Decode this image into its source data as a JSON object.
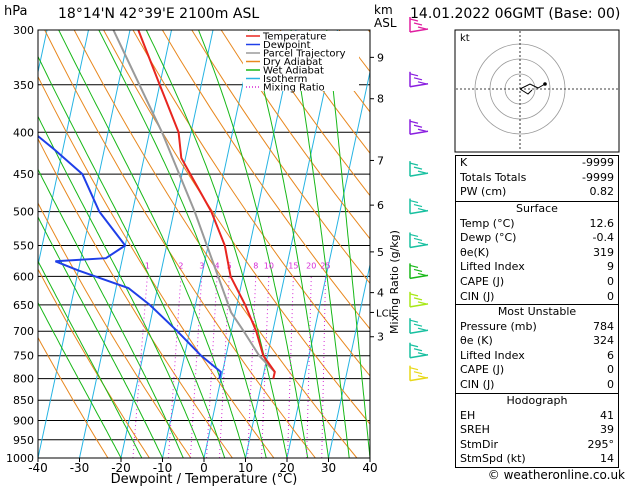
{
  "header": {
    "pressure_unit": "hPa",
    "location": "18°14'N  42°39'E  2100m  ASL",
    "km_label": "km",
    "asl_label": "ASL",
    "datetime": "14.01.2022  06GMT  (Base: 00)"
  },
  "chart_data": {
    "type": "skew-t",
    "pressure_levels": [
      300,
      350,
      400,
      450,
      500,
      550,
      600,
      650,
      700,
      750,
      800,
      850,
      900,
      950,
      1000
    ],
    "pressure_labels": [
      "300",
      "350",
      "400",
      "450",
      "500",
      "550",
      "600",
      "650",
      "700",
      "750",
      "800",
      "850",
      "900",
      "950",
      "1000"
    ],
    "x_ticks": [
      -40,
      -30,
      -20,
      -10,
      0,
      10,
      20,
      30,
      40
    ],
    "x_tick_labels": [
      "-40",
      "-30",
      "-20",
      "-10",
      "0",
      "10",
      "20",
      "30",
      "40"
    ],
    "xlabel": "Dewpoint / Temperature (°C)",
    "km_ticks": [
      {
        "p": 324,
        "label": "9"
      },
      {
        "p": 364,
        "label": "8"
      },
      {
        "p": 433,
        "label": "7"
      },
      {
        "p": 491,
        "label": "6"
      },
      {
        "p": 560,
        "label": "5"
      },
      {
        "p": 628,
        "label": "4"
      },
      {
        "p": 711,
        "label": "3"
      }
    ],
    "lcl": {
      "p": 664,
      "label": "LCL"
    },
    "mixing_ratio_label": "Mixing Ratio (g/kg)",
    "mixing_ratios": [
      1,
      2,
      3,
      4,
      5,
      8,
      10,
      15,
      20,
      25
    ],
    "mixing_ratio_labels": [
      "1",
      "2",
      "3",
      "4",
      "5",
      "8",
      "10",
      "15",
      "20",
      "25"
    ],
    "legend": [
      "Temperature",
      "Dewpoint",
      "Parcel Trajectory",
      "Dry Adiabat",
      "Wet Adiabat",
      "Isotherm",
      "Mixing Ratio"
    ],
    "temperature": [
      {
        "p": 300,
        "t": -38
      },
      {
        "p": 350,
        "t": -30
      },
      {
        "p": 400,
        "t": -23
      },
      {
        "p": 430,
        "t": -21
      },
      {
        "p": 450,
        "t": -18
      },
      {
        "p": 500,
        "t": -11
      },
      {
        "p": 550,
        "t": -6
      },
      {
        "p": 600,
        "t": -3
      },
      {
        "p": 650,
        "t": 2
      },
      {
        "p": 700,
        "t": 6
      },
      {
        "p": 750,
        "t": 9
      },
      {
        "p": 785,
        "t": 12.6
      },
      {
        "p": 800,
        "t": 12.6
      }
    ],
    "dewpoint": [
      {
        "p": 300,
        "t": -67
      },
      {
        "p": 310,
        "t": -74
      },
      {
        "p": 350,
        "t": -64
      },
      {
        "p": 400,
        "t": -58
      },
      {
        "p": 420,
        "t": -52
      },
      {
        "p": 450,
        "t": -44
      },
      {
        "p": 500,
        "t": -38
      },
      {
        "p": 550,
        "t": -30
      },
      {
        "p": 570,
        "t": -34
      },
      {
        "p": 575,
        "t": -46
      },
      {
        "p": 590,
        "t": -40
      },
      {
        "p": 620,
        "t": -27
      },
      {
        "p": 650,
        "t": -21
      },
      {
        "p": 700,
        "t": -13
      },
      {
        "p": 750,
        "t": -6
      },
      {
        "p": 785,
        "t": -0.4
      },
      {
        "p": 800,
        "t": -0.4
      }
    ],
    "parcel": [
      {
        "p": 300,
        "t": -44
      },
      {
        "p": 400,
        "t": -27
      },
      {
        "p": 500,
        "t": -15
      },
      {
        "p": 600,
        "t": -6
      },
      {
        "p": 664,
        "t": -1
      },
      {
        "p": 700,
        "t": 3
      },
      {
        "p": 750,
        "t": 8
      },
      {
        "p": 785,
        "t": 12.6
      }
    ],
    "colors": {
      "temperature": "#e8251f",
      "dewpoint": "#1f3fe8",
      "parcel": "#9a9a9a",
      "dry_adiabat": "#e8881f",
      "wet_adiabat": "#18b818",
      "isotherm": "#27b4e3",
      "mixing_ratio": "#d62ad6"
    }
  },
  "hodograph": {
    "label": "kt"
  },
  "wind_barbs": [
    {
      "p": 300,
      "color": "#e01fa0"
    },
    {
      "p": 350,
      "color": "#8a1fe0"
    },
    {
      "p": 400,
      "color": "#8a1fe0"
    },
    {
      "p": 450,
      "color": "#18c0a0"
    },
    {
      "p": 500,
      "color": "#18c0a0"
    },
    {
      "p": 550,
      "color": "#18c0a0"
    },
    {
      "p": 600,
      "color": "#18b818"
    },
    {
      "p": 650,
      "color": "#a8e818"
    },
    {
      "p": 700,
      "color": "#18c0a0"
    },
    {
      "p": 750,
      "color": "#18c0a0"
    },
    {
      "p": 800,
      "color": "#e8d818"
    }
  ],
  "indices": {
    "rows": [
      {
        "label": "K",
        "value": "-9999"
      },
      {
        "label": "Totals Totals",
        "value": "-9999"
      },
      {
        "label": "PW (cm)",
        "value": "0.82"
      }
    ]
  },
  "surface": {
    "title": "Surface",
    "rows": [
      {
        "label": "Temp (°C)",
        "value": "12.6"
      },
      {
        "label": "Dewp (°C)",
        "value": "-0.4"
      },
      {
        "label": "θe(K)",
        "value": "319"
      },
      {
        "label": "Lifted Index",
        "value": "9"
      },
      {
        "label": "CAPE (J)",
        "value": "0"
      },
      {
        "label": "CIN (J)",
        "value": "0"
      }
    ]
  },
  "most_unstable": {
    "title": "Most Unstable",
    "rows": [
      {
        "label": "Pressure (mb)",
        "value": "784"
      },
      {
        "label": "θe (K)",
        "value": "324"
      },
      {
        "label": "Lifted Index",
        "value": "6"
      },
      {
        "label": "CAPE (J)",
        "value": "0"
      },
      {
        "label": "CIN (J)",
        "value": "0"
      }
    ]
  },
  "hodograph_table": {
    "title": "Hodograph",
    "rows": [
      {
        "label": "EH",
        "value": "41"
      },
      {
        "label": "SREH",
        "value": "39"
      },
      {
        "label": "StmDir",
        "value": "295°"
      },
      {
        "label": "StmSpd (kt)",
        "value": "14"
      }
    ]
  },
  "footer": {
    "copyright": "© weatheronline.co.uk"
  }
}
